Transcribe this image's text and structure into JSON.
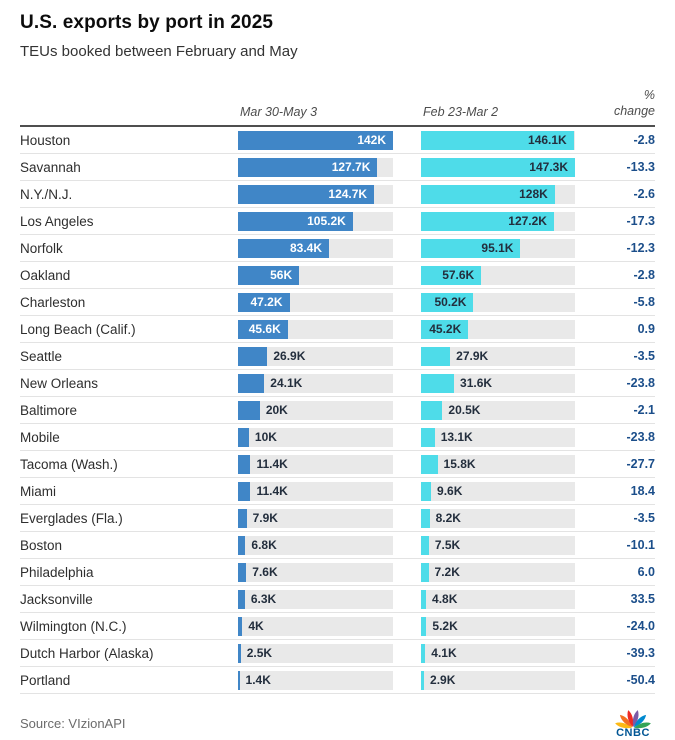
{
  "header": {
    "title": "U.S. exports by port in 2025",
    "subtitle": "TEUs booked between February and May"
  },
  "columns": {
    "period1_label": "Mar 30-May 3",
    "period2_label": "Feb 23-Mar 2",
    "change_label_line1": "%",
    "change_label_line2": "change"
  },
  "footer": {
    "source": "Source: VIzionAPI",
    "logo_text": "CNBC"
  },
  "colors": {
    "series1_bar": "#4086c7",
    "series2_bar": "#4edce9",
    "bar_track": "#e9e9e9",
    "label_inside_blue": "#ffffff",
    "label_dark": "#232e3d",
    "pct_change_text": "#1b4e8a",
    "header_rule": "#4f4f4f",
    "row_separator": "#e3e3e3",
    "peacock": [
      "#fdb913",
      "#f37021",
      "#ee2a24",
      "#7c5aa5",
      "#0089cf",
      "#33a457"
    ],
    "logo_text_color": "#005594"
  },
  "chart_data": {
    "type": "bar",
    "title": "U.S. exports by port in 2025",
    "subtitle": "TEUs booked between February and May",
    "unit": "TEUs (thousands, K)",
    "orientation": "horizontal",
    "grid": false,
    "legend_position": "column headers",
    "categories": [
      "Houston",
      "Savannah",
      "N.Y./N.J.",
      "Los Angeles",
      "Norfolk",
      "Oakland",
      "Charleston",
      "Long Beach (Calif.)",
      "Seattle",
      "New Orleans",
      "Baltimore",
      "Mobile",
      "Tacoma (Wash.)",
      "Miami",
      "Everglades (Fla.)",
      "Boston",
      "Philadelphia",
      "Jacksonville",
      "Wilmington (N.C.)",
      "Dutch Harbor (Alaska)",
      "Portland"
    ],
    "series": [
      {
        "name": "Mar 30-May 3",
        "values": [
          142,
          127.7,
          124.7,
          105.2,
          83.4,
          56,
          47.2,
          45.6,
          26.9,
          24.1,
          20,
          10,
          11.4,
          11.4,
          7.9,
          6.8,
          7.6,
          6.3,
          4,
          2.5,
          1.4
        ],
        "labels": [
          "142K",
          "127.7K",
          "124.7K",
          "105.2K",
          "83.4K",
          "56K",
          "47.2K",
          "45.6K",
          "26.9K",
          "24.1K",
          "20K",
          "10K",
          "11.4K",
          "11.4K",
          "7.9K",
          "6.8K",
          "7.6K",
          "6.3K",
          "4K",
          "2.5K",
          "1.4K"
        ]
      },
      {
        "name": "Feb 23-Mar 2",
        "values": [
          146.1,
          147.3,
          128,
          127.2,
          95.1,
          57.6,
          50.2,
          45.2,
          27.9,
          31.6,
          20.5,
          13.1,
          15.8,
          9.6,
          8.2,
          7.5,
          7.2,
          4.8,
          5.2,
          4.1,
          2.9
        ],
        "labels": [
          "146.1K",
          "147.3K",
          "128K",
          "127.2K",
          "95.1K",
          "57.6K",
          "50.2K",
          "45.2K",
          "27.9K",
          "31.6K",
          "20.5K",
          "13.1K",
          "15.8K",
          "9.6K",
          "8.2K",
          "7.5K",
          "7.2K",
          "4.8K",
          "5.2K",
          "4.1K",
          "2.9K"
        ]
      }
    ],
    "pct_change": [
      -2.8,
      -13.3,
      -2.6,
      -17.3,
      -12.3,
      -2.8,
      -5.8,
      0.9,
      -3.5,
      -23.8,
      -2.1,
      -23.8,
      -27.7,
      18.4,
      -3.5,
      -10.1,
      6.0,
      33.5,
      -24.0,
      -39.3,
      -50.4
    ],
    "pct_change_labels": [
      "-2.8",
      "-13.3",
      "-2.6",
      "-17.3",
      "-12.3",
      "-2.8",
      "-5.8",
      "0.9",
      "-3.5",
      "-23.8",
      "-2.1",
      "-23.8",
      "-27.7",
      "18.4",
      "-3.5",
      "-10.1",
      "6.0",
      "33.5",
      "-24.0",
      "-39.3",
      "-50.4"
    ],
    "xlim_per_column": "each bar column scaled to its own max value"
  }
}
